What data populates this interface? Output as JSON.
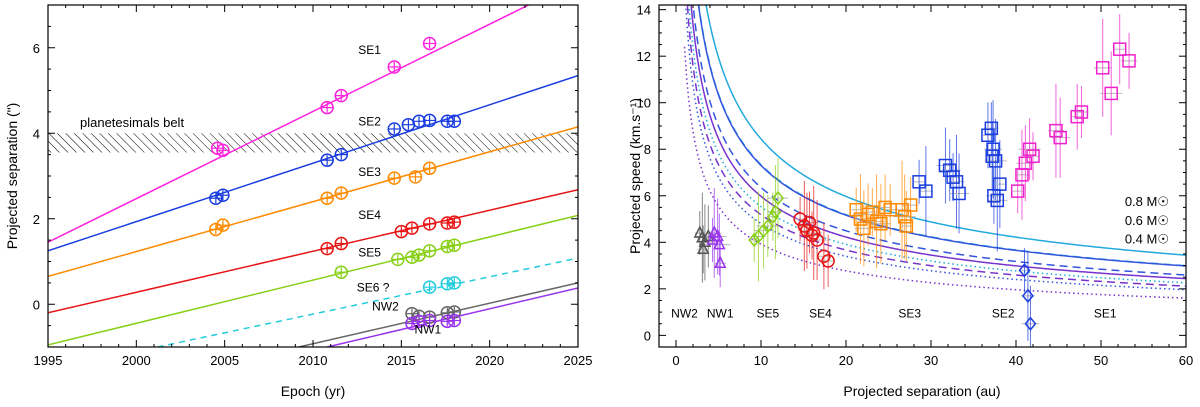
{
  "chart_data": [
    {
      "type": "scatter",
      "title": "",
      "xlabel": "Epoch (yr)",
      "ylabel": "Projected separation (\")",
      "xlim": [
        1995,
        2025
      ],
      "ylim": [
        -1,
        7
      ],
      "xticks": [
        1995,
        2000,
        2005,
        2010,
        2015,
        2020,
        2025
      ],
      "yticks": [
        0,
        2,
        4,
        6
      ],
      "belt": {
        "label": "planetesimals belt",
        "y_range": [
          3.55,
          4.0
        ]
      },
      "series": [
        {
          "name": "SE1",
          "color": "#ff22dd",
          "line": [
            [
              1995,
              1.45
            ],
            [
              2022.2,
              7.0
            ]
          ],
          "label_pos": [
            2013.2,
            5.85
          ],
          "points": [
            [
              2004.6,
              3.65
            ],
            [
              2004.9,
              3.6
            ],
            [
              2010.8,
              4.6
            ],
            [
              2011.6,
              4.88
            ],
            [
              2014.6,
              5.55
            ],
            [
              2016.6,
              6.1
            ]
          ]
        },
        {
          "name": "SE2",
          "color": "#1a3de0",
          "line": [
            [
              1995,
              1.25
            ],
            [
              2025,
              5.35
            ]
          ],
          "label_pos": [
            2013.2,
            4.18
          ],
          "points": [
            [
              2004.5,
              2.48
            ],
            [
              2004.9,
              2.55
            ],
            [
              2010.8,
              3.37
            ],
            [
              2011.6,
              3.5
            ],
            [
              2014.6,
              4.1
            ],
            [
              2015.4,
              4.2
            ],
            [
              2016.0,
              4.28
            ],
            [
              2016.6,
              4.3
            ],
            [
              2017.6,
              4.28
            ],
            [
              2018.0,
              4.28
            ]
          ]
        },
        {
          "name": "SE3",
          "color": "#ff8a00",
          "line": [
            [
              1995,
              0.65
            ],
            [
              2025,
              4.15
            ]
          ],
          "label_pos": [
            2013.2,
            3.0
          ],
          "points": [
            [
              2004.5,
              1.75
            ],
            [
              2004.9,
              1.85
            ],
            [
              2010.8,
              2.48
            ],
            [
              2011.6,
              2.6
            ],
            [
              2014.6,
              2.95
            ],
            [
              2015.8,
              2.98
            ],
            [
              2016.6,
              3.18
            ]
          ]
        },
        {
          "name": "SE4",
          "color": "#e81515",
          "line": [
            [
              1995,
              -0.2
            ],
            [
              2025,
              2.68
            ]
          ],
          "label_pos": [
            2013.2,
            2.0
          ],
          "points": [
            [
              2010.8,
              1.3
            ],
            [
              2011.6,
              1.42
            ],
            [
              2015.0,
              1.7
            ],
            [
              2015.6,
              1.78
            ],
            [
              2016.6,
              1.88
            ],
            [
              2017.6,
              1.9
            ],
            [
              2018.0,
              1.92
            ]
          ]
        },
        {
          "name": "SE5",
          "color": "#88d018",
          "line": [
            [
              1995,
              -0.95
            ],
            [
              2025,
              2.08
            ]
          ],
          "label_pos": [
            2013.2,
            1.12
          ],
          "points": [
            [
              2011.6,
              0.75
            ],
            [
              2014.8,
              1.05
            ],
            [
              2015.6,
              1.1
            ],
            [
              2016.0,
              1.15
            ],
            [
              2016.6,
              1.25
            ],
            [
              2017.6,
              1.35
            ],
            [
              2018.0,
              1.38
            ]
          ]
        },
        {
          "name": "SE6 ?",
          "color": "#22ccdd",
          "dashed": true,
          "line": [
            [
              2001.2,
              -1.0
            ],
            [
              2025,
              1.08
            ]
          ],
          "label_pos": [
            2013.4,
            0.3
          ],
          "points": [
            [
              2016.6,
              0.4
            ],
            [
              2017.6,
              0.48
            ],
            [
              2018.0,
              0.5
            ]
          ]
        },
        {
          "name": "NW2",
          "color": "#666666",
          "line": [
            [
              2009.2,
              -1.0
            ],
            [
              2025,
              0.5
            ]
          ],
          "label_pos": [
            2014.1,
            -0.15
          ],
          "points": [
            [
              2015.6,
              -0.22
            ],
            [
              2016.0,
              -0.28
            ],
            [
              2016.6,
              -0.3
            ],
            [
              2017.6,
              -0.2
            ],
            [
              2018.0,
              -0.18
            ]
          ]
        },
        {
          "name": "NW1",
          "color": "#9933ee",
          "line": [
            [
              2010.8,
              -1.0
            ],
            [
              2025,
              0.38
            ]
          ],
          "label_pos": [
            2016.5,
            -0.68
          ],
          "points": [
            [
              2015.6,
              -0.45
            ],
            [
              2016.0,
              -0.4
            ],
            [
              2016.6,
              -0.38
            ],
            [
              2017.6,
              -0.4
            ],
            [
              2018.0,
              -0.38
            ]
          ]
        }
      ]
    },
    {
      "type": "scatter",
      "title": "",
      "xlabel": "Projected separation (au)",
      "ylabel": "Projected speed (km.s⁻¹)",
      "xlim": [
        -2,
        60
      ],
      "ylim": [
        -0.5,
        14.2
      ],
      "xticks": [
        0,
        10,
        20,
        30,
        40,
        50,
        60
      ],
      "yticks": [
        0,
        2,
        4,
        6,
        8,
        10,
        12,
        14
      ],
      "mass_labels": [
        {
          "text": "0.8 M☉",
          "color": "#22aadd",
          "x": 55.4,
          "y": 5.55
        },
        {
          "text": "0.6 M☉",
          "color": "#3355dd",
          "x": 55.4,
          "y": 4.75
        },
        {
          "text": "0.4 M☉",
          "color": "#7733cc",
          "x": 55.4,
          "y": 3.95
        }
      ],
      "region_labels": [
        "NW2",
        "NW1",
        "SE5",
        "SE4",
        "SE3",
        "SE2",
        "SE1"
      ],
      "region_label_x": [
        1.0,
        5.2,
        10.8,
        17.0,
        27.5,
        38.5,
        50.5
      ],
      "region_label_y": 0.95,
      "curves": [
        {
          "mass": 0.8,
          "color": "#22aadd",
          "dash": "none",
          "k": 26.7
        },
        {
          "mass": 0.8,
          "color": "#22aadd",
          "dash": "dashed",
          "k": 23.2
        },
        {
          "mass": 0.8,
          "color": "#22aadd",
          "dash": "dotted",
          "k": 17.5
        },
        {
          "mass": 0.6,
          "color": "#3355dd",
          "dash": "none",
          "k": 23.1
        },
        {
          "mass": 0.6,
          "color": "#3355dd",
          "dash": "dashed",
          "k": 20.1
        },
        {
          "mass": 0.6,
          "color": "#3355dd",
          "dash": "dotted",
          "k": 15.2
        },
        {
          "mass": 0.4,
          "color": "#7733cc",
          "dash": "none",
          "k": 18.9
        },
        {
          "mass": 0.4,
          "color": "#7733cc",
          "dash": "dashed",
          "k": 16.4
        },
        {
          "mass": 0.4,
          "color": "#7733cc",
          "dash": "dotted",
          "k": 12.4
        }
      ],
      "series": [
        {
          "name": "NW2",
          "color": "#555555",
          "marker": "triangle",
          "points": [
            [
              2.8,
              4.4
            ],
            [
              3.1,
              4.2
            ],
            [
              3.4,
              4.0
            ],
            [
              3.8,
              4.25
            ],
            [
              3.2,
              3.7
            ]
          ]
        },
        {
          "name": "NW1",
          "color": "#9933ee",
          "marker": "triangle",
          "points": [
            [
              4.3,
              4.1
            ],
            [
              4.5,
              4.4
            ],
            [
              4.9,
              4.25
            ],
            [
              5.1,
              3.9
            ],
            [
              5.2,
              3.1
            ]
          ]
        },
        {
          "name": "SE5",
          "color": "#88d018",
          "marker": "diamond",
          "points": [
            [
              9.2,
              4.1
            ],
            [
              9.7,
              4.25
            ],
            [
              10.3,
              4.5
            ],
            [
              10.8,
              4.7
            ],
            [
              11.4,
              5.1
            ],
            [
              11.7,
              5.3
            ],
            [
              12.0,
              5.9
            ]
          ]
        },
        {
          "name": "SE4",
          "color": "#e81515",
          "marker": "circle",
          "points": [
            [
              14.6,
              5.0
            ],
            [
              15.1,
              4.7
            ],
            [
              15.4,
              4.5
            ],
            [
              15.7,
              4.85
            ],
            [
              16.0,
              4.3
            ],
            [
              16.2,
              4.4
            ],
            [
              16.6,
              4.1
            ],
            [
              17.4,
              3.4
            ],
            [
              17.9,
              3.2
            ]
          ]
        },
        {
          "name": "SE3",
          "color": "#ff8a00",
          "marker": "square",
          "points": [
            [
              21.2,
              5.4
            ],
            [
              21.7,
              5.0
            ],
            [
              22.1,
              4.6
            ],
            [
              22.6,
              5.2
            ],
            [
              23.1,
              5.3
            ],
            [
              23.6,
              4.9
            ],
            [
              24.1,
              4.8
            ],
            [
              24.6,
              5.5
            ],
            [
              25.2,
              5.4
            ],
            [
              26.6,
              5.4
            ],
            [
              26.9,
              5.1
            ],
            [
              27.1,
              4.7
            ],
            [
              27.6,
              5.6
            ]
          ]
        },
        {
          "name": "SE2",
          "color": "#1a3de0",
          "marker": "square",
          "points": [
            [
              28.6,
              6.6
            ],
            [
              29.4,
              6.2
            ],
            [
              31.7,
              7.3
            ],
            [
              32.2,
              7.1
            ],
            [
              32.6,
              6.8
            ],
            [
              33.0,
              6.6
            ],
            [
              33.3,
              6.1
            ],
            [
              36.7,
              8.6
            ],
            [
              37.1,
              8.9
            ],
            [
              37.3,
              8.0
            ],
            [
              37.6,
              7.5
            ],
            [
              37.2,
              7.7
            ],
            [
              37.4,
              6.0
            ],
            [
              37.8,
              5.8
            ],
            [
              38.1,
              6.5
            ]
          ]
        },
        {
          "name": "SE1",
          "color": "#ee22cc",
          "marker": "square",
          "points": [
            [
              40.2,
              6.2
            ],
            [
              40.7,
              6.9
            ],
            [
              41.1,
              7.4
            ],
            [
              41.6,
              8.0
            ],
            [
              42.0,
              7.7
            ],
            [
              44.7,
              8.8
            ],
            [
              45.2,
              8.5
            ],
            [
              47.2,
              9.4
            ],
            [
              47.7,
              9.6
            ],
            [
              50.2,
              11.5
            ],
            [
              51.2,
              10.4
            ],
            [
              52.2,
              12.3
            ],
            [
              53.3,
              11.8
            ]
          ]
        },
        {
          "name": "SE6",
          "color": "#1a3de0",
          "marker": "diamond",
          "points": [
            [
              41.0,
              2.8
            ],
            [
              41.4,
              1.7
            ],
            [
              41.7,
              0.5
            ]
          ]
        }
      ]
    }
  ]
}
